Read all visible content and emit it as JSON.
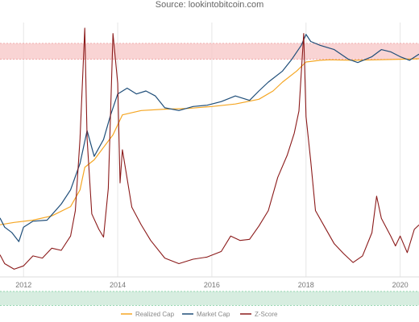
{
  "source_text": "Source: lookintobitcoin.com",
  "chart_data": {
    "type": "line",
    "x_ticks": [
      "2012",
      "2014",
      "2016",
      "2018",
      "2020"
    ],
    "x_range": [
      2011.5,
      2020.4
    ],
    "grid": true,
    "legend_placement": "bottom",
    "upper_band": {
      "from": 0.1,
      "to": 0.135,
      "color": "#f7c6c6"
    },
    "lower_band": {
      "from": 0.00096,
      "to": 0.00125,
      "color": "#cde9d8"
    },
    "series": [
      {
        "name": "Realized Cap",
        "color": "#f5a623",
        "axis": "price",
        "points": [
          [
            2011.5,
            0.0044
          ],
          [
            2011.8,
            0.0046
          ],
          [
            2012.2,
            0.0048
          ],
          [
            2012.6,
            0.0052
          ],
          [
            2013.0,
            0.0062
          ],
          [
            2013.2,
            0.0085
          ],
          [
            2013.3,
            0.013
          ],
          [
            2013.5,
            0.015
          ],
          [
            2013.9,
            0.024
          ],
          [
            2014.1,
            0.035
          ],
          [
            2014.5,
            0.038
          ],
          [
            2015.0,
            0.039
          ],
          [
            2015.5,
            0.0395
          ],
          [
            2016.0,
            0.041
          ],
          [
            2016.5,
            0.043
          ],
          [
            2017.0,
            0.047
          ],
          [
            2017.3,
            0.055
          ],
          [
            2017.5,
            0.065
          ],
          [
            2017.8,
            0.08
          ],
          [
            2018.0,
            0.095
          ],
          [
            2018.3,
            0.098
          ],
          [
            2018.5,
            0.099
          ],
          [
            2019.0,
            0.098
          ],
          [
            2019.5,
            0.099
          ],
          [
            2020.0,
            0.1
          ],
          [
            2020.4,
            0.101
          ]
        ]
      },
      {
        "name": "Market Cap",
        "color": "#1f4e79",
        "axis": "price",
        "points": [
          [
            2011.5,
            0.005
          ],
          [
            2011.6,
            0.0042
          ],
          [
            2011.75,
            0.0038
          ],
          [
            2011.9,
            0.0032
          ],
          [
            2012.0,
            0.0042
          ],
          [
            2012.2,
            0.0047
          ],
          [
            2012.5,
            0.0048
          ],
          [
            2012.8,
            0.0065
          ],
          [
            2013.0,
            0.0085
          ],
          [
            2013.2,
            0.014
          ],
          [
            2013.35,
            0.026
          ],
          [
            2013.5,
            0.016
          ],
          [
            2013.7,
            0.022
          ],
          [
            2013.85,
            0.035
          ],
          [
            2014.0,
            0.052
          ],
          [
            2014.2,
            0.058
          ],
          [
            2014.4,
            0.052
          ],
          [
            2014.6,
            0.055
          ],
          [
            2014.8,
            0.05
          ],
          [
            2015.0,
            0.04
          ],
          [
            2015.3,
            0.038
          ],
          [
            2015.6,
            0.041
          ],
          [
            2015.9,
            0.042
          ],
          [
            2016.2,
            0.045
          ],
          [
            2016.5,
            0.05
          ],
          [
            2016.8,
            0.046
          ],
          [
            2017.0,
            0.055
          ],
          [
            2017.2,
            0.065
          ],
          [
            2017.5,
            0.08
          ],
          [
            2017.7,
            0.1
          ],
          [
            2017.9,
            0.13
          ],
          [
            2018.0,
            0.16
          ],
          [
            2018.1,
            0.14
          ],
          [
            2018.3,
            0.13
          ],
          [
            2018.6,
            0.12
          ],
          [
            2018.9,
            0.1
          ],
          [
            2019.1,
            0.094
          ],
          [
            2019.4,
            0.105
          ],
          [
            2019.6,
            0.12
          ],
          [
            2019.8,
            0.115
          ],
          [
            2020.0,
            0.105
          ],
          [
            2020.2,
            0.098
          ],
          [
            2020.4,
            0.11
          ]
        ]
      },
      {
        "name": "Z-Score",
        "color": "#8b1a1a",
        "axis": "zscore",
        "points": [
          [
            2011.5,
            0.5
          ],
          [
            2011.6,
            -0.3
          ],
          [
            2011.8,
            -0.8
          ],
          [
            2012.0,
            -0.5
          ],
          [
            2012.2,
            0.4
          ],
          [
            2012.4,
            0.2
          ],
          [
            2012.6,
            1.1
          ],
          [
            2012.8,
            0.9
          ],
          [
            2013.0,
            2.2
          ],
          [
            2013.1,
            4.5
          ],
          [
            2013.2,
            11
          ],
          [
            2013.3,
            21
          ],
          [
            2013.35,
            11
          ],
          [
            2013.45,
            4.2
          ],
          [
            2013.6,
            2.8
          ],
          [
            2013.7,
            2.1
          ],
          [
            2013.8,
            6.5
          ],
          [
            2013.9,
            20.5
          ],
          [
            2014.0,
            16
          ],
          [
            2014.05,
            7
          ],
          [
            2014.1,
            10
          ],
          [
            2014.3,
            4.8
          ],
          [
            2014.5,
            3.2
          ],
          [
            2014.7,
            1.8
          ],
          [
            2015.0,
            0.2
          ],
          [
            2015.3,
            -0.3
          ],
          [
            2015.6,
            0.1
          ],
          [
            2015.9,
            0.3
          ],
          [
            2016.2,
            0.8
          ],
          [
            2016.4,
            2.2
          ],
          [
            2016.6,
            1.8
          ],
          [
            2016.8,
            1.9
          ],
          [
            2017.0,
            3.1
          ],
          [
            2017.2,
            4.5
          ],
          [
            2017.4,
            7.5
          ],
          [
            2017.6,
            9.5
          ],
          [
            2017.75,
            11.5
          ],
          [
            2017.85,
            13.5
          ],
          [
            2017.95,
            20.5
          ],
          [
            2018.0,
            13
          ],
          [
            2018.1,
            9
          ],
          [
            2018.2,
            4.5
          ],
          [
            2018.4,
            3
          ],
          [
            2018.6,
            1.5
          ],
          [
            2018.8,
            0.6
          ],
          [
            2019.0,
            -0.2
          ],
          [
            2019.2,
            0.4
          ],
          [
            2019.4,
            2.5
          ],
          [
            2019.5,
            5.8
          ],
          [
            2019.6,
            3.8
          ],
          [
            2019.8,
            2.2
          ],
          [
            2019.9,
            1.3
          ],
          [
            2020.0,
            2.2
          ],
          [
            2020.15,
            0.7
          ],
          [
            2020.3,
            2.8
          ],
          [
            2020.4,
            3.2
          ]
        ]
      }
    ]
  }
}
